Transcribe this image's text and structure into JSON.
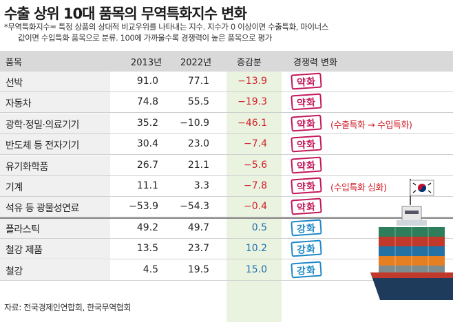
{
  "title": "수출 상위 10대 품목의 무역특화지수 변화",
  "note": {
    "line1": "*무역특화지수= 특정 상품의 상대적 비교우위를 나타내는 지수. 지수가 0 이상이면 수출특화, 마이너스",
    "line2": "값이면 수입특화 품목으로 분류. 100에 가까울수록 경쟁력이 높은 품목으로 평가"
  },
  "headers": {
    "item": "품목",
    "y2013": "2013년",
    "y2022": "2022년",
    "change": "증감분",
    "comp": "경쟁력 변화"
  },
  "chart_data": {
    "type": "table",
    "columns": [
      "품목",
      "2013년",
      "2022년",
      "증감분",
      "경쟁력 변화"
    ],
    "rows": [
      {
        "item": "선박",
        "y2013": "91.0",
        "y2022": "77.1",
        "change": "−13.9",
        "comp": "약화",
        "note": ""
      },
      {
        "item": "자동차",
        "y2013": "74.8",
        "y2022": "55.5",
        "change": "−19.3",
        "comp": "약화",
        "note": ""
      },
      {
        "item": "광학·정밀·의료기기",
        "y2013": "35.2",
        "y2022": "−10.9",
        "change": "−46.1",
        "comp": "약화",
        "note": "(수출특화 → 수입특화)"
      },
      {
        "item": "반도체 등 전자기기",
        "y2013": "30.4",
        "y2022": "23.0",
        "change": "−7.4",
        "comp": "약화",
        "note": ""
      },
      {
        "item": "유기화학품",
        "y2013": "26.7",
        "y2022": "21.1",
        "change": "−5.6",
        "comp": "약화",
        "note": ""
      },
      {
        "item": "기계",
        "y2013": "11.1",
        "y2022": "3.3",
        "change": "−7.8",
        "comp": "약화",
        "note": "(수입특화 심화)"
      },
      {
        "item": "석유 등 광물성연료",
        "y2013": "−53.9",
        "y2022": "−54.3",
        "change": "−0.4",
        "comp": "약화",
        "note": ""
      },
      {
        "item": "플라스틱",
        "y2013": "49.2",
        "y2022": "49.7",
        "change": "0.5",
        "comp": "강화",
        "note": ""
      },
      {
        "item": "철강 제품",
        "y2013": "13.5",
        "y2022": "23.7",
        "change": "10.2",
        "comp": "강화",
        "note": ""
      },
      {
        "item": "철강",
        "y2013": "4.5",
        "y2022": "19.5",
        "change": "15.0",
        "comp": "강화",
        "note": ""
      }
    ]
  },
  "colors": {
    "negative": "#d0212a",
    "positive": "#1f6fb0",
    "weaken_stamp": "#c2185b",
    "strengthen_stamp": "#1e88c8",
    "change_column_bg": "#eaf3df"
  },
  "illustration": "container-ship-with-korean-flag",
  "source": "자료: 전국경제인연합회, 한국무역협회"
}
